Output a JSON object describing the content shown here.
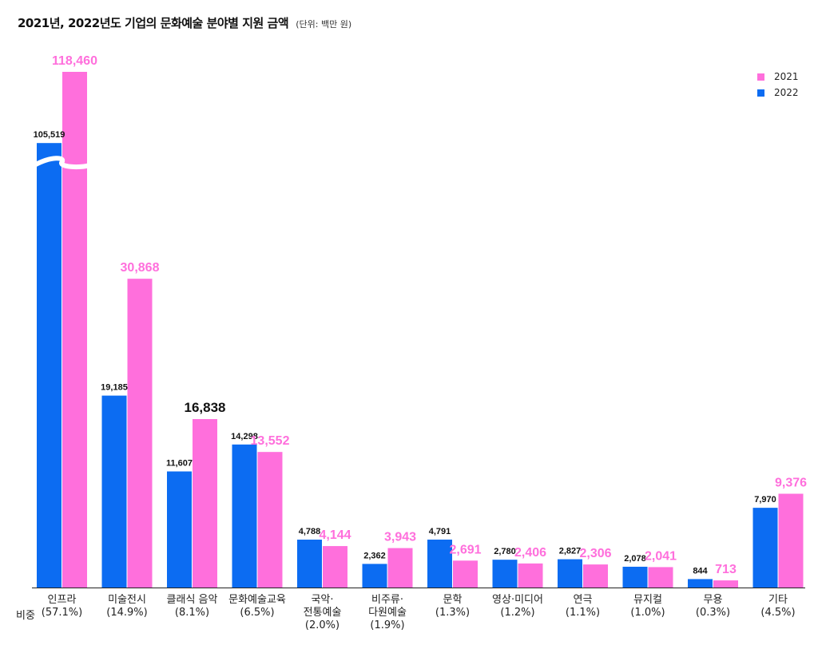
{
  "header": {
    "title": "2021년, 2022년도 기업의 문화예술 분야별 지원 금액",
    "subtitle": "(단위: 백만 원)"
  },
  "legend": {
    "items": [
      {
        "label": "2021",
        "color": "#ff6fdc"
      },
      {
        "label": "2022",
        "color": "#0c6cf2"
      }
    ]
  },
  "share_row_label": "비중",
  "chart_data": {
    "type": "bar",
    "title": "2021년, 2022년도 기업의 문화예술 분야별 지원 금액",
    "subtitle": "(단위: 백만 원)",
    "unit": "백만 원",
    "axis_break": true,
    "categories": [
      {
        "lines": [
          "인프라"
        ],
        "share": "(57.1%)"
      },
      {
        "lines": [
          "미술전시"
        ],
        "share": "(14.9%)"
      },
      {
        "lines": [
          "클래식 음악"
        ],
        "share": "(8.1%)"
      },
      {
        "lines": [
          "문화예술교육"
        ],
        "share": "(6.5%)"
      },
      {
        "lines": [
          "국악·",
          "전통예술"
        ],
        "share": "(2.0%)"
      },
      {
        "lines": [
          "비주류·",
          "다원예술"
        ],
        "share": "(1.9%)"
      },
      {
        "lines": [
          "문학"
        ],
        "share": "(1.3%)"
      },
      {
        "lines": [
          "영상·미디어"
        ],
        "share": "(1.2%)"
      },
      {
        "lines": [
          "연극"
        ],
        "share": "(1.1%)"
      },
      {
        "lines": [
          "뮤지컬"
        ],
        "share": "(1.0%)"
      },
      {
        "lines": [
          "무용"
        ],
        "share": "(0.3%)"
      },
      {
        "lines": [
          "기타"
        ],
        "share": "(4.5%)"
      }
    ],
    "series": [
      {
        "name": "2022",
        "color": "#0c6cf2",
        "values": [
          105519,
          19185,
          11607,
          14298,
          4788,
          2362,
          4791,
          2780,
          2827,
          2078,
          844,
          7970
        ],
        "labels": [
          "105,519",
          "19,185",
          "11,607",
          "14,298",
          "4,788",
          "2,362",
          "4,791",
          "2,780",
          "2,827",
          "2,078",
          "844",
          "7,970"
        ]
      },
      {
        "name": "2021",
        "color": "#ff6fdc",
        "values": [
          118460,
          30868,
          16838,
          13552,
          4144,
          3943,
          2691,
          2406,
          2306,
          2041,
          713,
          9376
        ],
        "labels": [
          "118,460",
          "30,868",
          "16,838",
          "13,552",
          "4,144",
          "3,943",
          "2,691",
          "2,406",
          "2,306",
          "2,041",
          "713",
          "9,376"
        ],
        "label_color": "#ff6fdc",
        "highlight_label_index": 2,
        "highlight_label_color": "#111111"
      }
    ]
  }
}
